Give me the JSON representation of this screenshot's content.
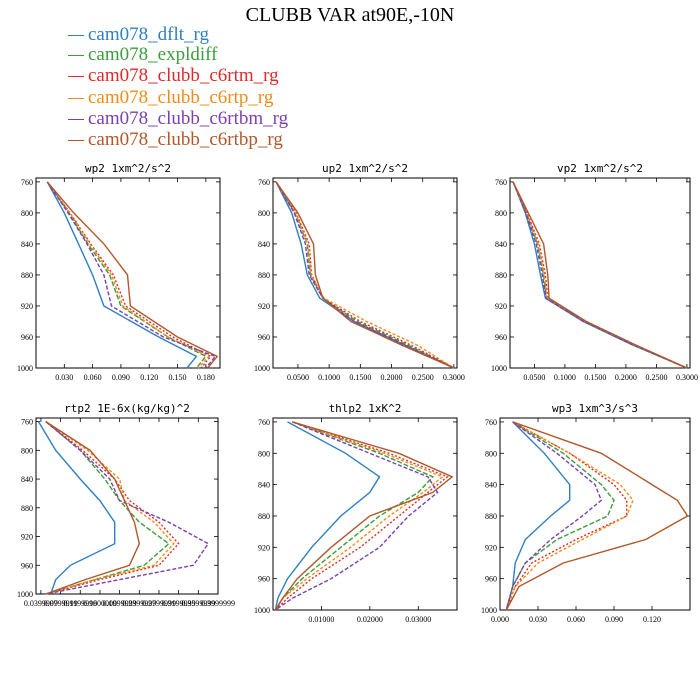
{
  "title": "CLUBB VAR at90E,-10N",
  "legend": [
    {
      "name": "cam078_dflt_rg",
      "color": "#2f7fc1"
    },
    {
      "name": "cam078_expldiff",
      "color": "#3a9e3a"
    },
    {
      "name": "cam078_clubb_c6rtm_rg",
      "color": "#e02a2a"
    },
    {
      "name": "cam078_clubb_c6rtp_rg",
      "color": "#f08c1a"
    },
    {
      "name": "cam078_clubb_c6rtbm_rg",
      "color": "#7b3fb0"
    },
    {
      "name": "cam078_clubb_c6rtbp_rg",
      "color": "#b0582a"
    }
  ],
  "chart_data": [
    {
      "type": "line",
      "title": "wp2  1xm^2/s^2",
      "xlim": [
        0,
        0.195
      ],
      "ylim": [
        1000,
        755
      ],
      "xticks": [
        0.03,
        0.06,
        0.09,
        0.12,
        0.15,
        0.18
      ],
      "xtick_labels": [
        "0.030",
        "0.060",
        "0.090",
        "0.120",
        "0.150",
        "0.180"
      ],
      "yticks": [
        760,
        800,
        840,
        880,
        920,
        960,
        1000
      ],
      "y": [
        760,
        800,
        840,
        880,
        920,
        960,
        985,
        1000
      ],
      "series": [
        {
          "name": "cam078_dflt_rg",
          "values": [
            0.012,
            0.03,
            0.045,
            0.06,
            0.072,
            0.13,
            0.17,
            0.16
          ]
        },
        {
          "name": "cam078_expldiff",
          "values": [
            0.012,
            0.035,
            0.055,
            0.078,
            0.09,
            0.14,
            0.18,
            0.17
          ]
        },
        {
          "name": "cam078_clubb_c6rtm_rg",
          "values": [
            0.012,
            0.036,
            0.058,
            0.082,
            0.095,
            0.145,
            0.185,
            0.175
          ]
        },
        {
          "name": "cam078_clubb_c6rtp_rg",
          "values": [
            0.012,
            0.036,
            0.057,
            0.08,
            0.092,
            0.14,
            0.183,
            0.172
          ]
        },
        {
          "name": "cam078_clubb_c6rtbm_rg",
          "values": [
            0.012,
            0.034,
            0.054,
            0.072,
            0.08,
            0.135,
            0.19,
            0.18
          ]
        },
        {
          "name": "cam078_clubb_c6rtbp_rg",
          "values": [
            0.012,
            0.04,
            0.072,
            0.097,
            0.1,
            0.15,
            0.192,
            0.182
          ]
        }
      ]
    },
    {
      "type": "line",
      "title": "up2  1xm^2/s^2",
      "xlim": [
        0.01,
        0.305
      ],
      "ylim": [
        1000,
        755
      ],
      "xticks": [
        0.05,
        0.1,
        0.15,
        0.2,
        0.25,
        0.3
      ],
      "xtick_labels": [
        "0.0500",
        "0.1000",
        "0.1500",
        "0.2000",
        "0.2500",
        "0.3000"
      ],
      "yticks": [
        760,
        800,
        840,
        880,
        920,
        960,
        1000
      ],
      "y": [
        760,
        800,
        840,
        880,
        910,
        940,
        970,
        1000
      ],
      "series": [
        {
          "name": "cam078_dflt_rg",
          "values": [
            0.015,
            0.04,
            0.055,
            0.065,
            0.085,
            0.14,
            0.22,
            0.3
          ]
        },
        {
          "name": "cam078_expldiff",
          "values": [
            0.015,
            0.045,
            0.065,
            0.07,
            0.09,
            0.145,
            0.225,
            0.3
          ]
        },
        {
          "name": "cam078_clubb_c6rtm_rg",
          "values": [
            0.015,
            0.047,
            0.068,
            0.072,
            0.09,
            0.15,
            0.23,
            0.3
          ]
        },
        {
          "name": "cam078_clubb_c6rtp_rg",
          "values": [
            0.015,
            0.046,
            0.066,
            0.071,
            0.092,
            0.16,
            0.24,
            0.3
          ]
        },
        {
          "name": "cam078_clubb_c6rtbm_rg",
          "values": [
            0.015,
            0.044,
            0.062,
            0.068,
            0.09,
            0.14,
            0.22,
            0.3
          ]
        },
        {
          "name": "cam078_clubb_c6rtbp_rg",
          "values": [
            0.015,
            0.05,
            0.075,
            0.078,
            0.09,
            0.135,
            0.215,
            0.3
          ]
        }
      ]
    },
    {
      "type": "line",
      "title": "vp2  1xm^2/s^2",
      "xlim": [
        0.01,
        0.305
      ],
      "ylim": [
        1000,
        755
      ],
      "xticks": [
        0.05,
        0.1,
        0.15,
        0.2,
        0.25,
        0.3
      ],
      "xtick_labels": [
        "0.0500",
        "0.1000",
        "0.1500",
        "0.2000",
        "0.2500",
        "0.3000"
      ],
      "yticks": [
        760,
        800,
        840,
        880,
        920,
        960,
        1000
      ],
      "y": [
        760,
        800,
        840,
        880,
        910,
        940,
        970,
        1000
      ],
      "series": [
        {
          "name": "cam078_dflt_rg",
          "values": [
            0.015,
            0.035,
            0.05,
            0.06,
            0.068,
            0.13,
            0.21,
            0.3
          ]
        },
        {
          "name": "cam078_expldiff",
          "values": [
            0.015,
            0.037,
            0.055,
            0.065,
            0.07,
            0.132,
            0.212,
            0.3
          ]
        },
        {
          "name": "cam078_clubb_c6rtm_rg",
          "values": [
            0.015,
            0.038,
            0.058,
            0.068,
            0.072,
            0.135,
            0.215,
            0.3
          ]
        },
        {
          "name": "cam078_clubb_c6rtp_rg",
          "values": [
            0.015,
            0.037,
            0.056,
            0.066,
            0.071,
            0.134,
            0.214,
            0.3
          ]
        },
        {
          "name": "cam078_clubb_c6rtbm_rg",
          "values": [
            0.015,
            0.036,
            0.053,
            0.063,
            0.069,
            0.131,
            0.211,
            0.3
          ]
        },
        {
          "name": "cam078_clubb_c6rtbp_rg",
          "values": [
            0.015,
            0.04,
            0.065,
            0.072,
            0.074,
            0.135,
            0.215,
            0.3
          ]
        }
      ]
    },
    {
      "type": "line",
      "title": "rtp2  1E-6x(kg/kg)^2",
      "xlim": [
        0.03,
        0.4
      ],
      "ylim": [
        1000,
        755
      ],
      "xticks": [
        0.04,
        0.08,
        0.12,
        0.16,
        0.2,
        0.24,
        0.28,
        0.32,
        0.36,
        0.4
      ],
      "xtick_labels": [
        "0.0399999",
        "0.0799999",
        "0.1199999",
        "0.1600000",
        "0.1999999",
        "0.2399999",
        "0.2799999",
        "0.3199999",
        "0.3599999",
        "0.3999999"
      ],
      "yticks": [
        760,
        800,
        840,
        880,
        920,
        960,
        1000
      ],
      "y": [
        760,
        800,
        840,
        870,
        900,
        930,
        960,
        980,
        1000
      ],
      "series": [
        {
          "name": "cam078_dflt_rg",
          "values": [
            0.035,
            0.07,
            0.12,
            0.16,
            0.19,
            0.19,
            0.1,
            0.07,
            0.06
          ]
        },
        {
          "name": "cam078_expldiff",
          "values": [
            0.05,
            0.12,
            0.17,
            0.2,
            0.24,
            0.3,
            0.25,
            0.15,
            0.05
          ]
        },
        {
          "name": "cam078_clubb_c6rtm_rg",
          "values": [
            0.05,
            0.125,
            0.19,
            0.22,
            0.28,
            0.32,
            0.28,
            0.16,
            0.05
          ]
        },
        {
          "name": "cam078_clubb_c6rtp_rg",
          "values": [
            0.05,
            0.135,
            0.2,
            0.21,
            0.27,
            0.31,
            0.27,
            0.15,
            0.05
          ]
        },
        {
          "name": "cam078_clubb_c6rtbm_rg",
          "values": [
            0.05,
            0.12,
            0.18,
            0.2,
            0.3,
            0.38,
            0.35,
            0.2,
            0.05
          ]
        },
        {
          "name": "cam078_clubb_c6rtbp_rg",
          "values": [
            0.05,
            0.14,
            0.19,
            0.21,
            0.23,
            0.24,
            0.22,
            0.13,
            0.05
          ]
        }
      ]
    },
    {
      "type": "line",
      "title": "thlp2  1xK^2",
      "xlim": [
        0,
        0.038
      ],
      "ylim": [
        1000,
        755
      ],
      "xticks": [
        0.01,
        0.02,
        0.03
      ],
      "xtick_labels": [
        "0.01000",
        "0.02000",
        "0.03000"
      ],
      "yticks": [
        760,
        800,
        840,
        880,
        920,
        960,
        1000
      ],
      "y": [
        760,
        800,
        830,
        850,
        880,
        920,
        960,
        985,
        1000
      ],
      "series": [
        {
          "name": "cam078_dflt_rg",
          "values": [
            0.003,
            0.015,
            0.022,
            0.02,
            0.014,
            0.008,
            0.003,
            0.001,
            0.0005
          ]
        },
        {
          "name": "cam078_expldiff",
          "values": [
            0.004,
            0.022,
            0.033,
            0.03,
            0.022,
            0.014,
            0.006,
            0.002,
            0.0005
          ]
        },
        {
          "name": "cam078_clubb_c6rtm_rg",
          "values": [
            0.004,
            0.024,
            0.036,
            0.032,
            0.026,
            0.018,
            0.008,
            0.003,
            0.0005
          ]
        },
        {
          "name": "cam078_clubb_c6rtp_rg",
          "values": [
            0.004,
            0.023,
            0.035,
            0.031,
            0.024,
            0.016,
            0.007,
            0.002,
            0.0005
          ]
        },
        {
          "name": "cam078_clubb_c6rtbm_rg",
          "values": [
            0.004,
            0.02,
            0.032,
            0.034,
            0.028,
            0.022,
            0.012,
            0.004,
            0.0005
          ]
        },
        {
          "name": "cam078_clubb_c6rtbp_rg",
          "values": [
            0.004,
            0.026,
            0.037,
            0.033,
            0.02,
            0.012,
            0.005,
            0.002,
            0.0005
          ]
        }
      ]
    },
    {
      "type": "line",
      "title": "wp3  1xm^3/s^3",
      "xlim": [
        0,
        0.15
      ],
      "ylim": [
        1000,
        755
      ],
      "xticks": [
        0,
        0.03,
        0.06,
        0.09,
        0.12
      ],
      "xtick_labels": [
        "0.000",
        "0.030",
        "0.060",
        "0.090",
        "0.120"
      ],
      "yticks": [
        760,
        800,
        840,
        880,
        920,
        960,
        1000
      ],
      "y": [
        760,
        800,
        840,
        860,
        880,
        910,
        940,
        970,
        1000
      ],
      "series": [
        {
          "name": "cam078_dflt_rg",
          "values": [
            0.01,
            0.035,
            0.055,
            0.055,
            0.04,
            0.02,
            0.012,
            0.01,
            0.005
          ]
        },
        {
          "name": "cam078_expldiff",
          "values": [
            0.01,
            0.05,
            0.08,
            0.09,
            0.085,
            0.045,
            0.02,
            0.01,
            0.005
          ]
        },
        {
          "name": "cam078_clubb_c6rtm_rg",
          "values": [
            0.01,
            0.055,
            0.09,
            0.1,
            0.1,
            0.06,
            0.025,
            0.012,
            0.005
          ]
        },
        {
          "name": "cam078_clubb_c6rtp_rg",
          "values": [
            0.01,
            0.055,
            0.095,
            0.105,
            0.1,
            0.065,
            0.03,
            0.012,
            0.005
          ]
        },
        {
          "name": "cam078_clubb_c6rtbm_rg",
          "values": [
            0.01,
            0.045,
            0.075,
            0.08,
            0.065,
            0.04,
            0.02,
            0.01,
            0.005
          ]
        },
        {
          "name": "cam078_clubb_c6rtbp_rg",
          "values": [
            0.01,
            0.08,
            0.12,
            0.14,
            0.148,
            0.115,
            0.05,
            0.015,
            0.005
          ]
        }
      ]
    }
  ]
}
